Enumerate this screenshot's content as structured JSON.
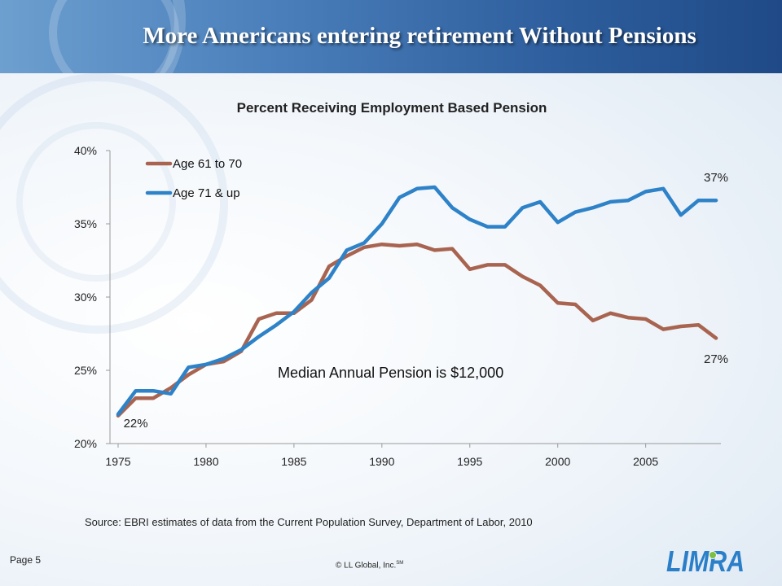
{
  "slide": {
    "title": "More Americans entering retirement Without Pensions",
    "source": "Source: EBRI estimates of data from the Current Population Survey, Department of Labor, 2010",
    "page": "Page 5",
    "copyright": "© LL Global, Inc.",
    "copyright_mark": "SM",
    "logo_text": "LIMRA"
  },
  "chart_data": {
    "type": "line",
    "title": "Percent Receiving Employment Based Pension",
    "xlabel": "",
    "ylabel": "",
    "xlim": [
      1975,
      2009
    ],
    "ylim": [
      20,
      40
    ],
    "x_ticks": [
      1975,
      1980,
      1985,
      1990,
      1995,
      2000,
      2005
    ],
    "y_ticks": [
      {
        "v": 20,
        "label": "20%"
      },
      {
        "v": 25,
        "label": "25%"
      },
      {
        "v": 30,
        "label": "30%"
      },
      {
        "v": 35,
        "label": "35%"
      },
      {
        "v": 40,
        "label": "40%"
      }
    ],
    "grid": false,
    "legend_position": "top-left",
    "x": [
      1975,
      1976,
      1977,
      1978,
      1979,
      1980,
      1981,
      1982,
      1983,
      1984,
      1985,
      1986,
      1987,
      1988,
      1989,
      1990,
      1991,
      1992,
      1993,
      1994,
      1995,
      1996,
      1997,
      1998,
      1999,
      2000,
      2001,
      2002,
      2003,
      2004,
      2005,
      2006,
      2007,
      2008,
      2009
    ],
    "series": [
      {
        "name": "Age 61 to 70",
        "color": "#a86450",
        "values": [
          21.9,
          23.1,
          23.1,
          23.8,
          24.7,
          25.4,
          25.6,
          26.3,
          28.5,
          28.9,
          28.9,
          29.8,
          32.1,
          32.8,
          33.4,
          33.6,
          33.5,
          33.6,
          33.2,
          33.3,
          31.9,
          32.2,
          32.2,
          31.4,
          30.8,
          29.6,
          29.5,
          28.4,
          28.9,
          28.6,
          28.5,
          27.8,
          28.0,
          28.1,
          27.2
        ]
      },
      {
        "name": "Age 71 & up",
        "color": "#2e82c8",
        "values": [
          22.0,
          23.6,
          23.6,
          23.4,
          25.2,
          25.4,
          25.8,
          26.4,
          27.3,
          28.1,
          29.0,
          30.3,
          31.3,
          33.2,
          33.7,
          35.0,
          36.8,
          37.4,
          37.5,
          36.1,
          35.3,
          34.8,
          34.8,
          36.1,
          36.5,
          35.1,
          35.8,
          36.1,
          36.5,
          36.6,
          37.2,
          37.4,
          35.6,
          36.6,
          36.6
        ]
      }
    ],
    "annotations": [
      {
        "text": "22%",
        "at_x": 1976,
        "at_y": 21.1
      },
      {
        "text": "37%",
        "at_x": 2009,
        "at_y": 37.9
      },
      {
        "text": "27%",
        "at_x": 2009,
        "at_y": 25.5
      },
      {
        "text": "Median Annual Pension is $12,000",
        "at_x": 1990.5,
        "at_y": 24.5
      }
    ]
  }
}
